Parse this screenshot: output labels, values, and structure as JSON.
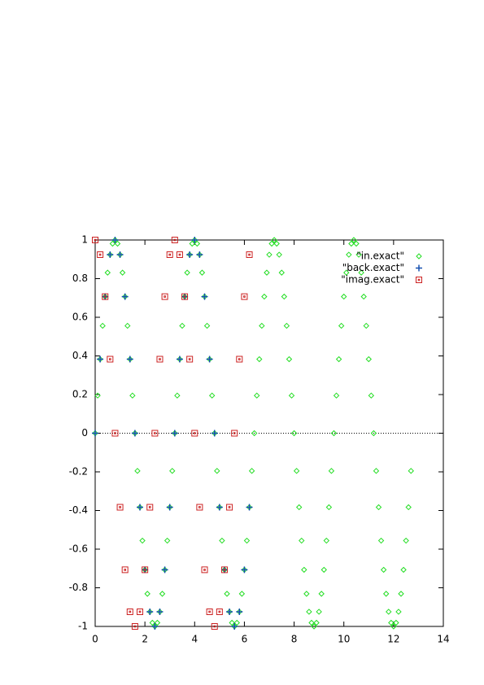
{
  "chart_data": {
    "type": "scatter",
    "xlim": [
      0,
      14
    ],
    "xticks": [
      0,
      2,
      4,
      6,
      8,
      10,
      12,
      14
    ],
    "ylim": [
      -1,
      1
    ],
    "yticks": [
      -1,
      -0.8,
      -0.6,
      -0.4,
      -0.2,
      0,
      0.2,
      0.4,
      0.6,
      0.8,
      1
    ],
    "zeroaxis": true,
    "legend": "top-right",
    "series": [
      {
        "name": "\"in.exact\"",
        "color": "#22dd22",
        "marker": "diamond",
        "x": [
          0,
          0.1,
          0.2,
          0.3,
          0.4,
          0.5,
          0.6,
          0.7,
          0.8,
          0.9,
          1,
          1.1,
          1.2,
          1.3,
          1.4,
          1.5,
          1.6,
          1.7,
          1.8,
          1.9,
          2,
          2.1,
          2.2,
          2.3,
          2.4,
          2.5,
          2.6,
          2.7,
          2.8,
          2.9,
          3,
          3.1,
          3.2,
          3.3,
          3.4,
          3.5,
          3.6,
          3.7,
          3.8,
          3.9,
          4,
          4.1,
          4.2,
          4.3,
          4.4,
          4.5,
          4.6,
          4.7,
          4.8,
          4.9,
          5,
          5.1,
          5.2,
          5.3,
          5.4,
          5.5,
          5.6,
          5.7,
          5.8,
          5.9,
          6,
          6.1,
          6.2,
          6.3,
          6.4,
          6.5,
          6.6,
          6.7,
          6.8,
          6.9,
          7,
          7.1,
          7.2,
          7.3,
          7.4,
          7.5,
          7.6,
          7.7,
          7.8,
          7.9,
          8,
          8.1,
          8.2,
          8.3,
          8.4,
          8.5,
          8.6,
          8.7,
          8.8,
          8.9,
          9,
          9.1,
          9.2,
          9.3,
          9.4,
          9.5,
          9.6,
          9.7,
          9.8,
          9.9,
          10,
          10.1,
          10.2,
          10.3,
          10.4,
          10.5,
          10.6,
          10.7,
          10.8,
          10.9,
          11,
          11.1,
          11.2,
          11.3,
          11.4,
          11.5,
          11.6,
          11.7,
          11.8,
          11.9,
          12,
          12.1,
          12.2,
          12.3,
          12.4,
          12.5,
          12.6,
          12.7
        ],
        "values": [
          0,
          0.195,
          0.383,
          0.556,
          0.707,
          0.831,
          0.924,
          0.981,
          1,
          0.981,
          0.924,
          0.831,
          0.707,
          0.556,
          0.383,
          0.195,
          0,
          -0.195,
          -0.383,
          -0.556,
          -0.707,
          -0.831,
          -0.924,
          -0.981,
          -1,
          -0.981,
          -0.924,
          -0.831,
          -0.707,
          -0.556,
          -0.383,
          -0.195,
          0,
          0.195,
          0.383,
          0.556,
          0.707,
          0.831,
          0.924,
          0.981,
          1,
          0.981,
          0.924,
          0.831,
          0.707,
          0.556,
          0.383,
          0.195,
          0,
          -0.195,
          -0.383,
          -0.556,
          -0.707,
          -0.831,
          -0.924,
          -0.981,
          -1,
          -0.981,
          -0.924,
          -0.831,
          -0.707,
          -0.556,
          -0.383,
          -0.195,
          0,
          0.195,
          0.383,
          0.556,
          0.707,
          0.831,
          0.924,
          0.981,
          1,
          0.981,
          0.924,
          0.831,
          0.707,
          0.556,
          0.383,
          0.195,
          0,
          -0.195,
          -0.383,
          -0.556,
          -0.707,
          -0.831,
          -0.924,
          -0.981,
          -1,
          -0.981,
          -0.924,
          -0.831,
          -0.707,
          -0.556,
          -0.383,
          -0.195,
          0,
          0.195,
          0.383,
          0.556,
          0.707,
          0.831,
          0.924,
          0.981,
          1,
          0.981,
          0.924,
          0.831,
          0.707,
          0.556,
          0.383,
          0.195,
          0,
          -0.195,
          -0.383,
          -0.556,
          -0.707,
          -0.831,
          -0.924,
          -0.981,
          -1,
          -0.981,
          -0.924,
          -0.831,
          -0.707,
          -0.556,
          -0.383,
          -0.195
        ]
      },
      {
        "name": "\"back.exact\"",
        "color": "#1650b0",
        "marker": "plus",
        "x": [
          0,
          0.2,
          0.4,
          0.6,
          0.8,
          1,
          1.2,
          1.4,
          1.6,
          1.8,
          2,
          2.2,
          2.4,
          2.6,
          2.8,
          3,
          3.2,
          3.4,
          3.6,
          3.8,
          4,
          4.2,
          4.4,
          4.6,
          4.8,
          5,
          5.2,
          5.4,
          5.6,
          5.8,
          6,
          6.2
        ],
        "values": [
          0,
          0.383,
          0.707,
          0.924,
          1,
          0.924,
          0.707,
          0.383,
          0,
          -0.383,
          -0.707,
          -0.924,
          -1,
          -0.924,
          -0.707,
          -0.383,
          0,
          0.383,
          0.707,
          0.924,
          1,
          0.924,
          0.707,
          0.383,
          0,
          -0.383,
          -0.707,
          -0.924,
          -1,
          -0.924,
          -0.707,
          -0.383
        ]
      },
      {
        "name": "\"imag.exact\"",
        "color": "#cc2222",
        "marker": "square",
        "x": [
          0,
          0.2,
          0.4,
          0.6,
          0.8,
          1,
          1.2,
          1.4,
          1.6,
          1.8,
          2,
          2.2,
          2.4,
          2.6,
          2.8,
          3,
          3.2,
          3.4,
          3.6,
          3.8,
          4,
          4.2,
          4.4,
          4.6,
          4.8,
          5,
          5.2,
          5.4,
          5.6,
          5.8,
          6,
          6.2
        ],
        "values": [
          1,
          0.924,
          0.707,
          0.383,
          0,
          -0.383,
          -0.707,
          -0.924,
          -1,
          -0.924,
          -0.707,
          -0.383,
          0,
          0.383,
          0.707,
          0.924,
          1,
          0.924,
          0.707,
          0.383,
          0,
          -0.383,
          -0.707,
          -0.924,
          -1,
          -0.924,
          -0.707,
          -0.383,
          0,
          0.383,
          0.707,
          0.924
        ]
      }
    ]
  }
}
